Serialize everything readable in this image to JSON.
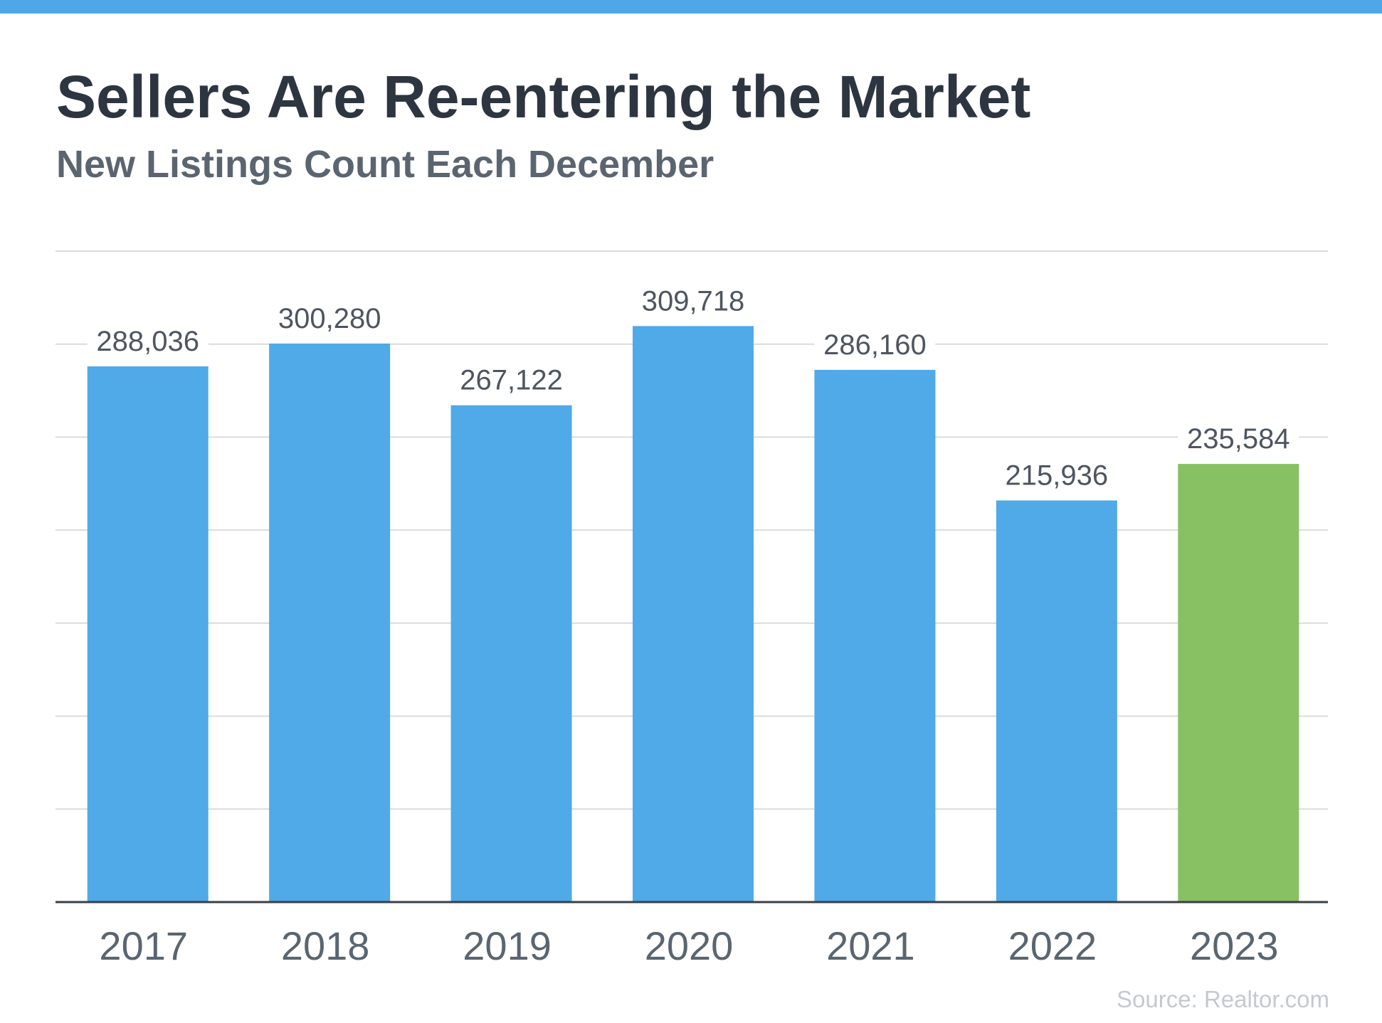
{
  "header": {
    "title": "Sellers Are Re-entering the Market",
    "subtitle": "New Listings Count Each December"
  },
  "source": "Source: Realtor.com",
  "colors": {
    "top_bar": "#4ea8e8",
    "bar_default": "#4faae7",
    "bar_highlight": "#88c064",
    "baseline": "#3a3f47",
    "gridline": "#d9dcdf",
    "value_label": "#4d5560",
    "tick_label": "#5b6570"
  },
  "chart_data": {
    "type": "bar",
    "title": "Sellers Are Re-entering the Market",
    "subtitle": "New Listings Count Each December",
    "categories": [
      "2017",
      "2018",
      "2019",
      "2020",
      "2021",
      "2022",
      "2023"
    ],
    "values": [
      288036,
      300280,
      267122,
      309718,
      286160,
      215936,
      235584
    ],
    "value_labels": [
      "288,036",
      "300,280",
      "267,122",
      "309,718",
      "286,160",
      "215,936",
      "235,584"
    ],
    "highlight_category": "2023",
    "ylim": [
      0,
      350000
    ],
    "gridline_step": 50000,
    "grid": true,
    "xlabel": "",
    "ylabel": ""
  }
}
